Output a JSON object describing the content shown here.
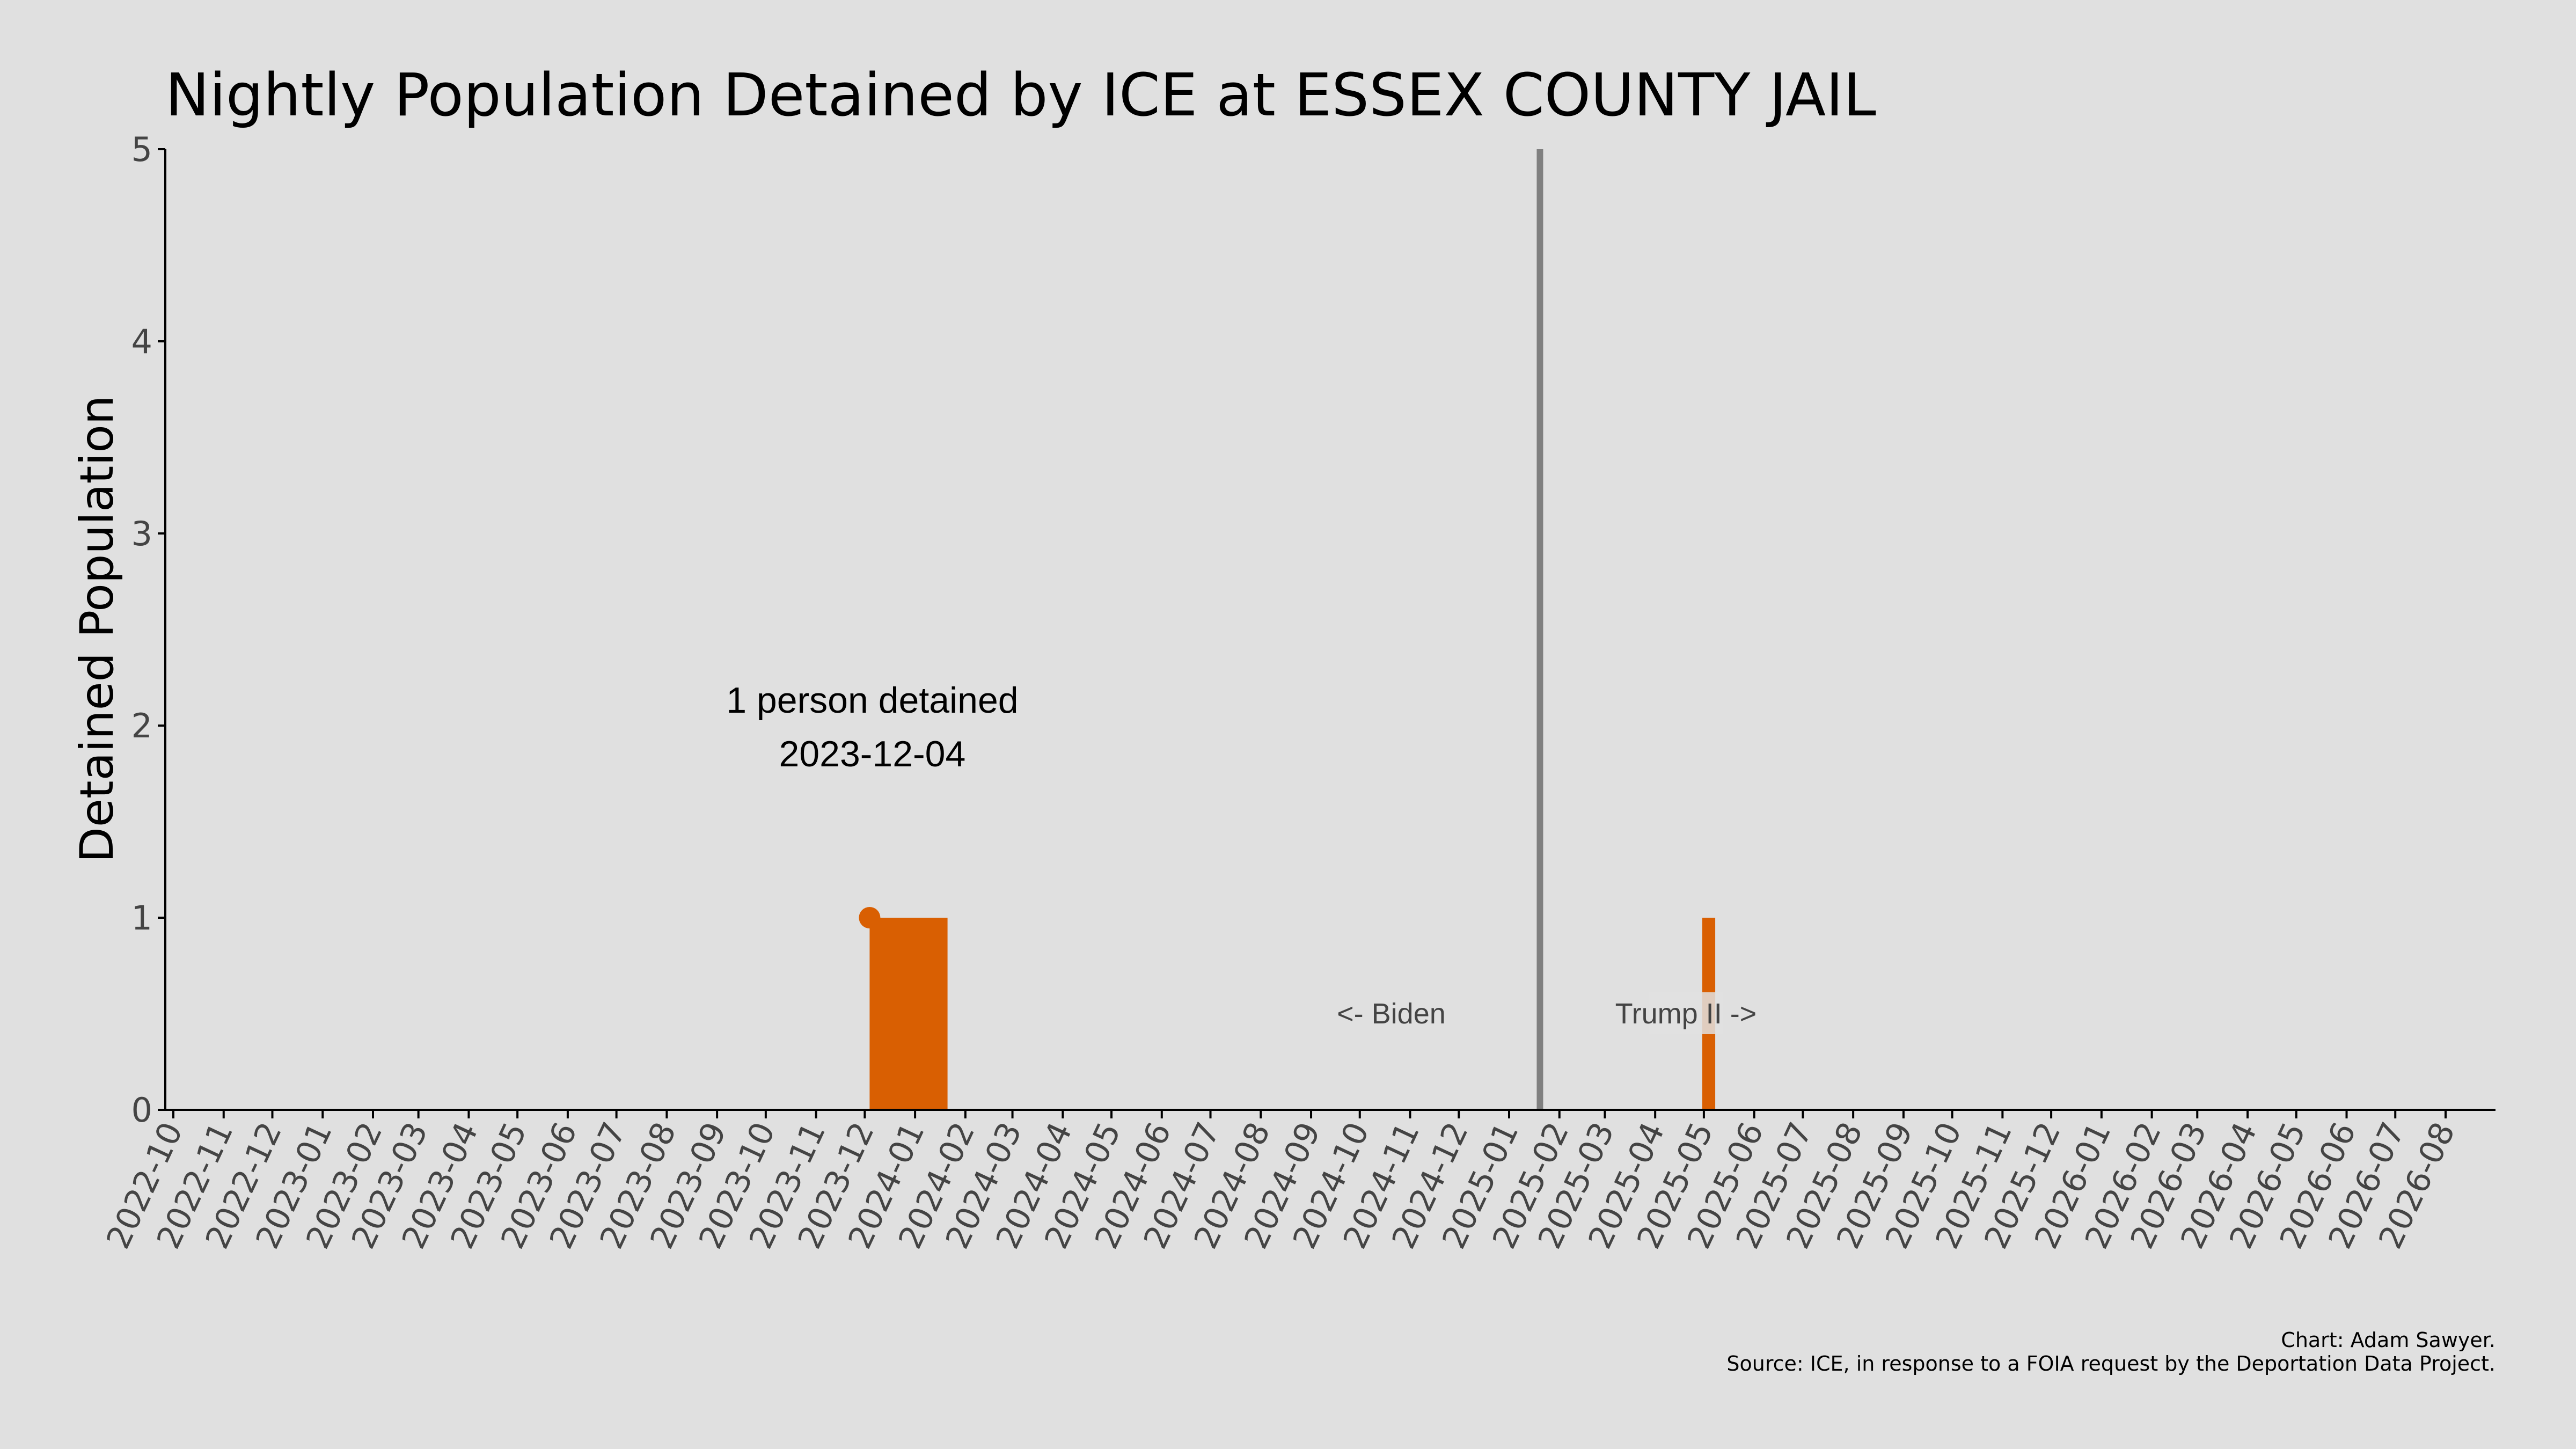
{
  "chart_data": {
    "type": "area",
    "title": "Nightly Population Detained by ICE at ESSEX COUNTY JAIL",
    "xlabel": "",
    "ylabel": "Detained Population",
    "ylim": [
      0,
      5
    ],
    "yticks": [
      0,
      1,
      2,
      3,
      4,
      5
    ],
    "xlim": [
      "2022-10-01",
      "2026-08-01"
    ],
    "xticks": [
      "2022-10",
      "2022-11",
      "2022-12",
      "2023-01",
      "2023-02",
      "2023-03",
      "2023-04",
      "2023-05",
      "2023-06",
      "2023-07",
      "2023-08",
      "2023-09",
      "2023-10",
      "2023-11",
      "2023-12",
      "2024-01",
      "2024-02",
      "2024-03",
      "2024-04",
      "2024-05",
      "2024-06",
      "2024-07",
      "2024-08",
      "2024-09",
      "2024-10",
      "2024-11",
      "2024-12",
      "2025-01",
      "2025-02",
      "2025-03",
      "2025-04",
      "2025-05",
      "2025-06",
      "2025-07",
      "2025-08",
      "2025-09",
      "2025-10",
      "2025-11",
      "2025-12",
      "2026-01",
      "2026-02",
      "2026-03",
      "2026-04",
      "2026-05",
      "2026-06",
      "2026-07",
      "2026-08"
    ],
    "grid": false,
    "series": [
      {
        "color": "#d95f02",
        "points": [
          {
            "x": "2023-12-04",
            "y": 1
          },
          {
            "x": "2024-01-21",
            "y": 1
          },
          {
            "x": "2025-04-30",
            "y": 1
          },
          {
            "x": "2025-05-08",
            "y": 1
          }
        ]
      }
    ],
    "highlight": {
      "x": "2023-12-04",
      "y": 1,
      "label_line1": "1 person detained",
      "label_line2": "2023-12-04"
    },
    "reference_line": {
      "x": "2025-01-20",
      "color": "#808080",
      "label_left": "<- Biden",
      "label_right": "Trump II ->"
    },
    "credit": "Chart: Adam Sawyer.",
    "source": "Source: ICE, in response to a FOIA request by the Deportation Data Project."
  }
}
